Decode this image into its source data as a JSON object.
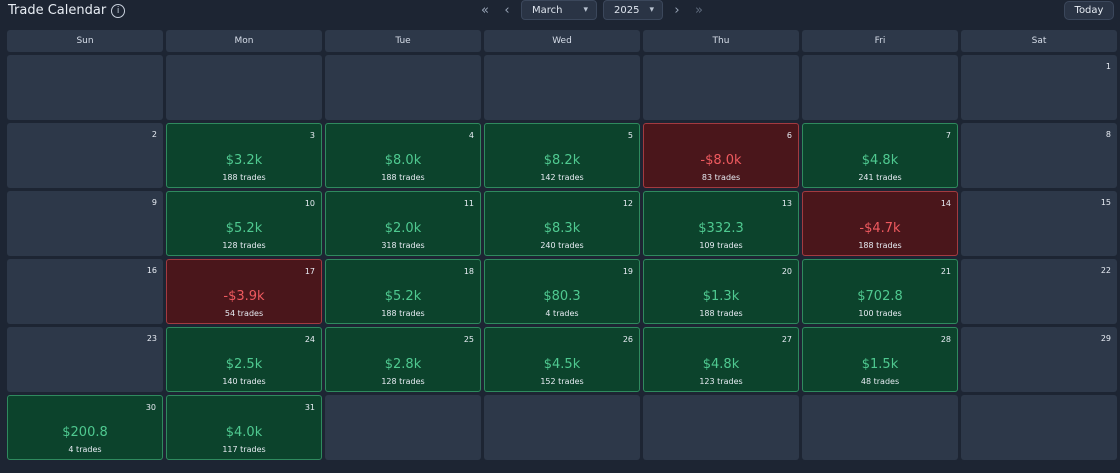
{
  "header": {
    "title": "Trade Calendar",
    "month": "March",
    "year": "2025",
    "today_label": "Today"
  },
  "weekdays": [
    "Sun",
    "Mon",
    "Tue",
    "Wed",
    "Thu",
    "Fri",
    "Sat"
  ],
  "colors": {
    "profit": "#4fc990",
    "loss": "#ef5a5f"
  },
  "days": [
    {
      "day": "1"
    },
    {
      "day": "2"
    },
    {
      "day": "3",
      "pnl": "$3.2k",
      "trades": "188 trades",
      "status": "profit"
    },
    {
      "day": "4",
      "pnl": "$8.0k",
      "trades": "188 trades",
      "status": "profit"
    },
    {
      "day": "5",
      "pnl": "$8.2k",
      "trades": "142 trades",
      "status": "profit"
    },
    {
      "day": "6",
      "pnl": "-$8.0k",
      "trades": "83 trades",
      "status": "loss"
    },
    {
      "day": "7",
      "pnl": "$4.8k",
      "trades": "241 trades",
      "status": "profit"
    },
    {
      "day": "8"
    },
    {
      "day": "9"
    },
    {
      "day": "10",
      "pnl": "$5.2k",
      "trades": "128 trades",
      "status": "profit"
    },
    {
      "day": "11",
      "pnl": "$2.0k",
      "trades": "318 trades",
      "status": "profit"
    },
    {
      "day": "12",
      "pnl": "$8.3k",
      "trades": "240 trades",
      "status": "profit"
    },
    {
      "day": "13",
      "pnl": "$332.3",
      "trades": "109 trades",
      "status": "profit"
    },
    {
      "day": "14",
      "pnl": "-$4.7k",
      "trades": "188 trades",
      "status": "loss"
    },
    {
      "day": "15"
    },
    {
      "day": "16"
    },
    {
      "day": "17",
      "pnl": "-$3.9k",
      "trades": "54 trades",
      "status": "loss"
    },
    {
      "day": "18",
      "pnl": "$5.2k",
      "trades": "188 trades",
      "status": "profit"
    },
    {
      "day": "19",
      "pnl": "$80.3",
      "trades": "4 trades",
      "status": "profit"
    },
    {
      "day": "20",
      "pnl": "$1.3k",
      "trades": "188 trades",
      "status": "profit"
    },
    {
      "day": "21",
      "pnl": "$702.8",
      "trades": "100 trades",
      "status": "profit"
    },
    {
      "day": "22"
    },
    {
      "day": "23"
    },
    {
      "day": "24",
      "pnl": "$2.5k",
      "trades": "140 trades",
      "status": "profit"
    },
    {
      "day": "25",
      "pnl": "$2.8k",
      "trades": "128 trades",
      "status": "profit"
    },
    {
      "day": "26",
      "pnl": "$4.5k",
      "trades": "152 trades",
      "status": "profit"
    },
    {
      "day": "27",
      "pnl": "$4.8k",
      "trades": "123 trades",
      "status": "profit"
    },
    {
      "day": "28",
      "pnl": "$1.5k",
      "trades": "48 trades",
      "status": "profit"
    },
    {
      "day": "29"
    },
    {
      "day": "30",
      "pnl": "$200.8",
      "trades": "4 trades",
      "status": "profit"
    },
    {
      "day": "31",
      "pnl": "$4.0k",
      "trades": "117 trades",
      "status": "profit"
    }
  ]
}
